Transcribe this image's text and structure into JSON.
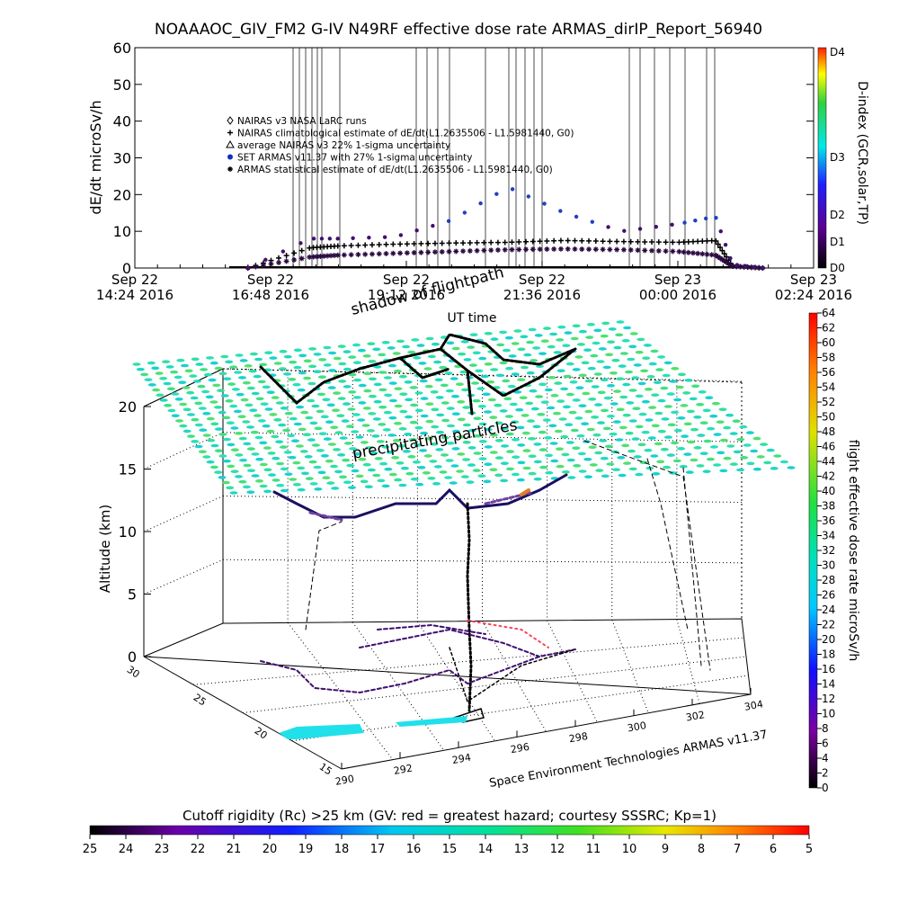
{
  "title": "NOAAAOC_GIV_FM2 G-IV    N49RF   effective dose rate ARMAS_dirIP_Report_56940",
  "top_panel": {
    "ylabel": "dE/dt microSv/h",
    "xlabel": "UT time",
    "yticks": [
      "0",
      "10",
      "20",
      "30",
      "40",
      "50",
      "60"
    ],
    "xticks": [
      {
        "l1": "Sep 22",
        "l2": "14:24 2016"
      },
      {
        "l1": "Sep 22",
        "l2": "16:48 2016"
      },
      {
        "l1": "Sep 22",
        "l2": "19:12 2016"
      },
      {
        "l1": "Sep 22",
        "l2": "21:36 2016"
      },
      {
        "l1": "Sep 23",
        "l2": "00:00 2016"
      },
      {
        "l1": "Sep 23",
        "l2": "02:24 2016"
      }
    ],
    "legend": [
      "NAIRAS v3 NASA LaRC runs",
      "NAIRAS climatological estimate of dE/dt(L1.2635506 - L1.5981440, G0)",
      "average NAIRAS v3 22% 1-sigma uncertainty",
      "SET ARMAS v11.37 with 27% 1-sigma uncertainty",
      "ARMAS statistical estimate of dE/dt(L1.2635506 - L1.5981440, G0)"
    ],
    "dindex_label": "D-index (GCR,solar,TP)",
    "dindex_ticks": [
      "D0",
      "D1",
      "D2",
      "D3",
      "D4"
    ]
  },
  "bottom_panel": {
    "zlabel": "Altitude (km)",
    "zticks": [
      "0",
      "5",
      "10",
      "15",
      "20"
    ],
    "lat_ticks": [
      "15",
      "20",
      "25",
      "30"
    ],
    "lon_ticks": [
      "290",
      "292",
      "294",
      "296",
      "298",
      "300",
      "302",
      "304"
    ],
    "annotation_top": "shadow of flightpath",
    "annotation_mid": "precipitating particles",
    "credit": "Space Environment Technologies ARMAS v11.37",
    "colorbar_label": "flight effective dose rate microSv/h",
    "colorbar_ticks": [
      "0",
      "2",
      "4",
      "6",
      "8",
      "10",
      "12",
      "14",
      "16",
      "18",
      "20",
      "22",
      "24",
      "26",
      "28",
      "30",
      "32",
      "34",
      "36",
      "38",
      "40",
      "42",
      "44",
      "46",
      "48",
      "50",
      "52",
      "54",
      "56",
      "58",
      "60",
      "62",
      "64"
    ]
  },
  "cutoff_bar": {
    "label": "Cutoff rigidity (Rc) >25 km (GV: red = greatest hazard; courtesy SSSRC; Kp=1)",
    "ticks": [
      "25",
      "24",
      "23",
      "22",
      "21",
      "20",
      "19",
      "18",
      "17",
      "16",
      "15",
      "14",
      "13",
      "12",
      "11",
      "10",
      "9",
      "8",
      "7",
      "6",
      "5"
    ]
  },
  "chart_data": {
    "type": "scatter",
    "title": "NOAAAOC_GIV_FM2 G-IV    N49RF   effective dose rate ARMAS_dirIP_Report_56940",
    "xlabel": "UT time",
    "ylabel": "dE/dt microSv/h",
    "ylim": [
      0,
      60
    ],
    "xlim": [
      "2016-09-22 14:24",
      "2016-09-23 02:24"
    ],
    "grid": false,
    "legend_position": "top-left",
    "x": [
      "2016-09-22 16:24",
      "2016-09-22 17:30",
      "2016-09-22 18:00",
      "2016-09-22 19:00",
      "2016-09-22 20:00",
      "2016-09-22 21:00",
      "2016-09-22 22:00",
      "2016-09-22 23:00",
      "2016-09-23 00:00",
      "2016-09-23 00:40",
      "2016-09-23 00:58",
      "2016-09-23 01:30"
    ],
    "series": [
      {
        "name": "NAIRAS climatological estimate of dE/dt(L1.2635506 - L1.5981440, G0)",
        "values": [
          0,
          5.5,
          6,
          6.5,
          6.8,
          7,
          7.5,
          7.2,
          7,
          7.5,
          0.5,
          0
        ]
      },
      {
        "name": "SET ARMAS v11.37 with 27% 1-sigma uncertainty",
        "values": [
          0,
          8,
          8,
          8.5,
          13,
          22,
          15,
          10,
          12,
          14,
          1,
          0
        ]
      },
      {
        "name": "ARMAS statistical estimate of dE/dt(L1.2635506 - L1.5981440, G0)",
        "values": [
          0,
          3,
          3.5,
          4,
          4.5,
          5,
          5.2,
          5,
          4.5,
          3.5,
          0.5,
          0
        ]
      }
    ]
  },
  "colors": {
    "dindex_bar": [
      "#000000",
      "#5a0090",
      "#2020ff",
      "#00e8e8",
      "#ffff00",
      "#ff2000"
    ],
    "colorbar": [
      "#000000",
      "#7a00a0",
      "#1010ff",
      "#00c8ff",
      "#00e0c0",
      "#20e040",
      "#e0e000",
      "#ff8000",
      "#ff0000"
    ],
    "armas_points": "#401070",
    "nairas_points": "#000000",
    "grid_particles": "#30e0a0"
  }
}
